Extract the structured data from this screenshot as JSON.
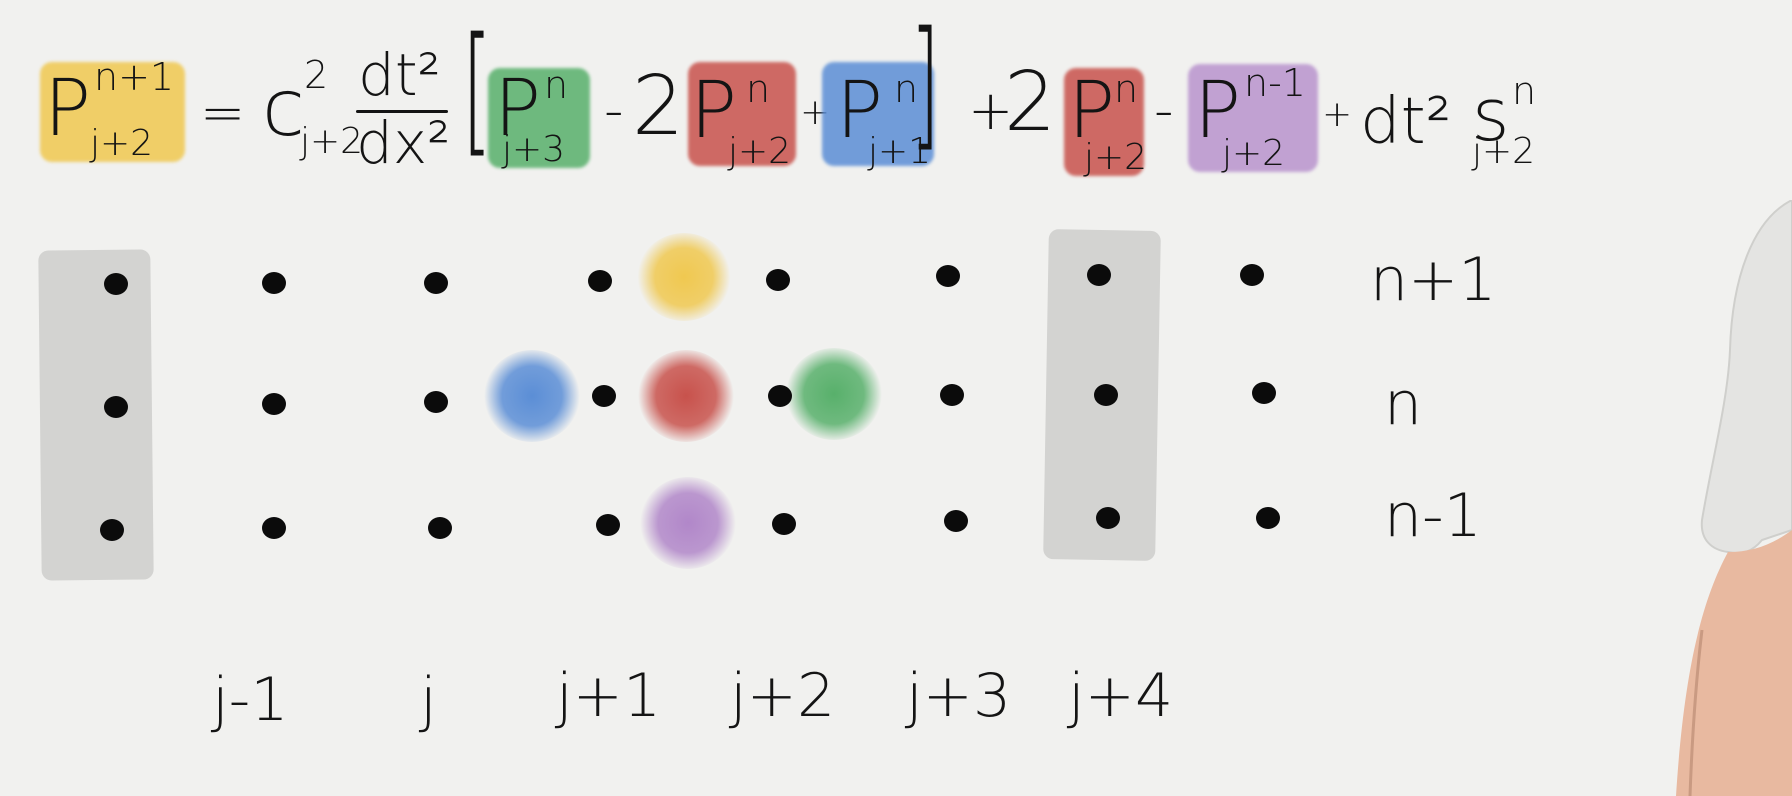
{
  "colors": {
    "yellow": "#f0c850",
    "green": "#58b06b",
    "red": "#c8524c",
    "blue": "#5b8ed6",
    "purple": "#b187c9",
    "boundary_gray": "#d3d3d1",
    "ink": "#141414"
  },
  "equation": {
    "lhs": {
      "symbol": "P",
      "sup": "n+1",
      "sub": "j+2"
    },
    "equals": "=",
    "c": {
      "symbol": "c",
      "sup": "2",
      "sub": "j+2"
    },
    "frac": {
      "num": "dt²",
      "den": "dx²"
    },
    "bracket_open": "[",
    "bracket_close": "]",
    "t1": {
      "symbol": "P",
      "sup": "n",
      "sub": "j+3"
    },
    "minus1": "-",
    "two1": "2",
    "t2": {
      "symbol": "P",
      "sup": "n",
      "sub": "j+2"
    },
    "plus1": "+",
    "t3": {
      "symbol": "P",
      "sup": "n",
      "sub": "j+1"
    },
    "plus2": "+",
    "two2": "2",
    "t4": {
      "symbol": "P",
      "sup": "n",
      "sub": "j+2"
    },
    "minus2": "-",
    "t5": {
      "symbol": "P",
      "sup": "n-1",
      "sub": "j+2"
    },
    "plus3": "+",
    "source": {
      "prefix": "dt²",
      "symbol": "s",
      "sup": "n",
      "sub": "j+2"
    }
  },
  "grid": {
    "columns": [
      "j-1",
      "j",
      "j+1",
      "j+2",
      "j+3",
      "j+4"
    ],
    "rows": [
      "n+1",
      "n",
      "n-1"
    ],
    "highlights": [
      {
        "row": "n+1",
        "col": "j+2",
        "color": "yellow"
      },
      {
        "row": "n",
        "col": "j+1",
        "color": "blue"
      },
      {
        "row": "n",
        "col": "j+2",
        "color": "red"
      },
      {
        "row": "n",
        "col": "j+3",
        "color": "green"
      },
      {
        "row": "n-1",
        "col": "j+2",
        "color": "purple"
      }
    ]
  }
}
